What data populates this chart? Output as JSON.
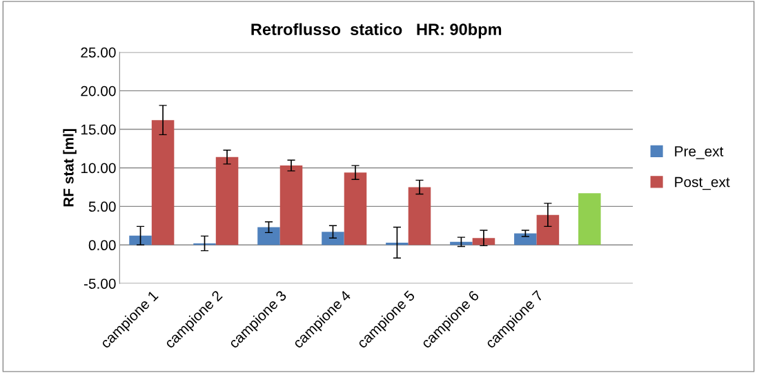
{
  "chart_data": {
    "type": "bar",
    "title": "Retroflusso  statico   HR: 90bpm",
    "ylabel": "RF stat [ml]",
    "categories": [
      "campione 1",
      "campione 2",
      "campione 3",
      "campione 4",
      "campione 5",
      "campione 6",
      "campione 7",
      null
    ],
    "series": [
      {
        "name": "Pre_ext",
        "color": "#4f81bd",
        "colors": [
          "#4f81bd",
          "#4f81bd",
          "#4f81bd",
          "#4f81bd",
          "#4f81bd",
          "#4f81bd",
          "#4f81bd",
          "#92d050"
        ],
        "values": [
          1.2,
          0.2,
          2.3,
          1.7,
          0.3,
          0.4,
          1.5,
          6.7
        ],
        "errors": [
          1.2,
          0.95,
          0.7,
          0.8,
          2.0,
          0.6,
          0.4,
          null
        ]
      },
      {
        "name": "Post_ext",
        "color": "#c0504d",
        "values": [
          16.2,
          11.4,
          10.3,
          9.4,
          7.5,
          0.9,
          3.9,
          null
        ],
        "errors": [
          1.9,
          0.9,
          0.7,
          0.9,
          0.9,
          1.0,
          1.5,
          null
        ]
      }
    ],
    "ylim": [
      -5,
      25
    ],
    "yticks": [
      {
        "value": -5,
        "label": "-5.00"
      },
      {
        "value": 0,
        "label": "0.00"
      },
      {
        "value": 5,
        "label": "5.00"
      },
      {
        "value": 10,
        "label": "10.00"
      },
      {
        "value": 15,
        "label": "15.00"
      },
      {
        "value": 20,
        "label": "20.00"
      },
      {
        "value": 25,
        "label": "25.00"
      }
    ],
    "grid": "y",
    "legend": "right"
  }
}
